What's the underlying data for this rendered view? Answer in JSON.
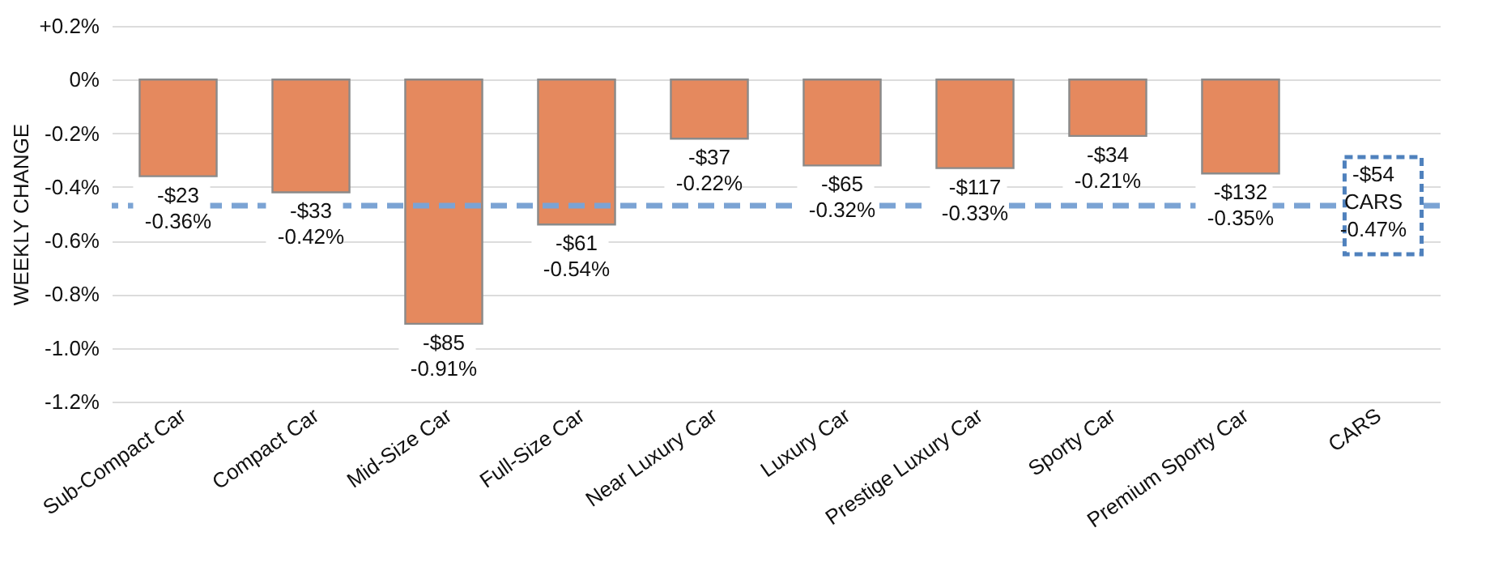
{
  "chart_data": {
    "type": "bar",
    "ylabel": "WEEKLY CHANGE",
    "categories": [
      "Sub-Compact Car",
      "Compact Car",
      "Mid-Size Car",
      "Full-Size Car",
      "Near Luxury Car",
      "Luxury Car",
      "Prestige Luxury Car",
      "Sporty Car",
      "Premium Sporty Car",
      "CARS"
    ],
    "values": [
      -0.36,
      -0.42,
      -0.91,
      -0.54,
      -0.22,
      -0.32,
      -0.33,
      -0.21,
      -0.35,
      null
    ],
    "value_labels": [
      "-$23\n-0.36%",
      "-$33\n-0.42%",
      "-$85\n-0.91%",
      "-$61\n-0.54%",
      "-$37\n-0.22%",
      "-$65\n-0.32%",
      "-$117\n-0.33%",
      "-$34\n-0.21%",
      "-$132\n-0.35%",
      null
    ],
    "color": "#e5895e",
    "ylim": [
      -1.2,
      0.2
    ],
    "yticks": [
      {
        "value": 0.2,
        "label": "+0.2%"
      },
      {
        "value": 0,
        "label": "0%"
      },
      {
        "value": -0.2,
        "label": "-0.2%"
      },
      {
        "value": -0.4,
        "label": "-0.4%"
      },
      {
        "value": -0.6,
        "label": "-0.6%"
      },
      {
        "value": -0.8,
        "label": "-0.8%"
      },
      {
        "value": -1.0,
        "label": "-1.0%"
      },
      {
        "value": -1.2,
        "label": "-1.2%"
      }
    ],
    "grid": "y",
    "ref_lines": [
      {
        "axis": "y",
        "value": -0.47,
        "label": "-$54\nCARS\n-0.47%",
        "color": "#7ba3d4",
        "line_style": "dashed"
      }
    ]
  }
}
